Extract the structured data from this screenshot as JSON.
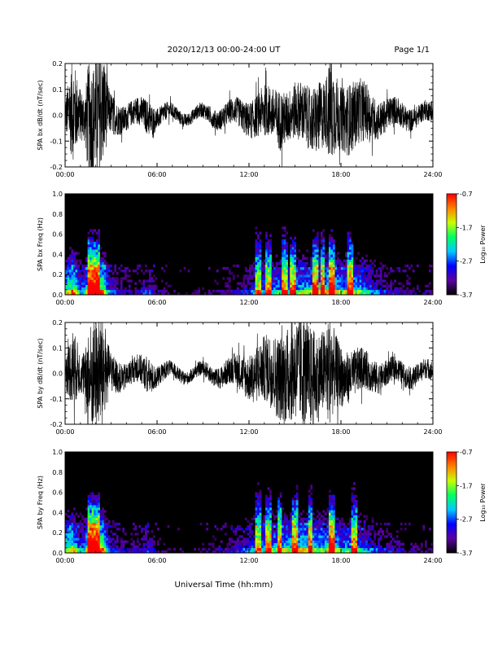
{
  "header": {
    "date_range": "2020/12/13  00:00-24:00 UT",
    "page": "Page 1/1"
  },
  "x_axis": {
    "label": "Universal Time (hh:mm)",
    "range_hours": [
      0,
      24
    ],
    "tick_hours": [
      0,
      6,
      12,
      18,
      24
    ],
    "tick_labels": [
      "00:00",
      "06:00",
      "12:00",
      "18:00",
      "24:00"
    ]
  },
  "colorbar": {
    "label": "Log₁₀ Power",
    "range": [
      -3.7,
      -0.7
    ],
    "tick_values": [
      -0.7,
      -1.7,
      -2.7,
      -3.7
    ],
    "tick_labels": [
      "-0.7",
      "-1.7",
      "-2.7",
      "-3.7"
    ],
    "colors": [
      "#000000",
      "#5a00a0",
      "#0000ff",
      "#00c8ff",
      "#00ff60",
      "#c8ff00",
      "#ff8000",
      "#ff0000"
    ]
  },
  "chart_data": [
    {
      "type": "line",
      "name": "bx-waveform",
      "ylabel": "SPA bx dB/dt (nT/sec)",
      "ylim": [
        -0.2,
        0.2
      ],
      "yticks": [
        0.2,
        0.1,
        0.0,
        -0.1,
        -0.2
      ],
      "ytick_labels": [
        "0.2",
        "0.1",
        "0.0",
        "-0.1",
        "-0.2"
      ],
      "envelope_hours": [
        0,
        0.3,
        0.5,
        1,
        1.3,
        1.5,
        1.8,
        2.2,
        2.5,
        2.8,
        3,
        3.5,
        4,
        4.5,
        5,
        5.5,
        6,
        7,
        8,
        9,
        10,
        11,
        12,
        12.5,
        13,
        13.5,
        14,
        14.5,
        15,
        15.5,
        16,
        16.5,
        17,
        17.3,
        17.6,
        18,
        18.5,
        19,
        19.5,
        20,
        21,
        22,
        23,
        24
      ],
      "envelope_amp": [
        0.06,
        0.15,
        0.2,
        0.1,
        0.1,
        0.22,
        0.22,
        0.22,
        0.22,
        0.1,
        0.08,
        0.06,
        0.05,
        0.05,
        0.06,
        0.07,
        0.04,
        0.03,
        0.025,
        0.03,
        0.04,
        0.05,
        0.07,
        0.08,
        0.1,
        0.1,
        0.12,
        0.1,
        0.11,
        0.12,
        0.12,
        0.14,
        0.13,
        0.22,
        0.16,
        0.12,
        0.14,
        0.13,
        0.12,
        0.09,
        0.06,
        0.05,
        0.04,
        0.04
      ]
    },
    {
      "type": "heatmap",
      "name": "bx-spectrogram",
      "ylabel": "SPA bx Freq (Hz)",
      "ylim": [
        0.0,
        1.0
      ],
      "yticks": [
        1.0,
        0.8,
        0.6,
        0.4,
        0.2,
        0.0
      ],
      "ytick_labels": [
        "1.0",
        "0.8",
        "0.6",
        "0.4",
        "0.2",
        "0.0"
      ],
      "activity_hours": [
        0,
        0.3,
        0.5,
        1,
        1.3,
        1.5,
        1.8,
        2.2,
        2.5,
        2.8,
        3,
        3.5,
        4,
        4.5,
        5,
        5.5,
        6,
        7,
        8,
        9,
        10,
        11,
        12,
        12.5,
        13,
        13.5,
        14,
        14.5,
        15,
        15.5,
        16,
        16.5,
        17,
        17.3,
        17.6,
        18,
        18.5,
        19,
        19.5,
        20,
        21,
        22,
        23,
        24
      ],
      "activity_level": [
        0.8,
        0.9,
        1.0,
        0.6,
        0.6,
        1.0,
        1.0,
        1.0,
        1.0,
        0.6,
        0.5,
        0.4,
        0.35,
        0.35,
        0.4,
        0.45,
        0.3,
        0.25,
        0.2,
        0.25,
        0.3,
        0.35,
        0.45,
        0.55,
        0.6,
        0.65,
        0.7,
        0.65,
        0.7,
        0.75,
        0.75,
        0.8,
        0.8,
        1.0,
        0.85,
        0.7,
        0.8,
        0.75,
        0.7,
        0.55,
        0.4,
        0.35,
        0.3,
        0.3
      ],
      "bright_bursts_hours": [
        1.7,
        2.1,
        12.6,
        13.3,
        14.3,
        14.9,
        16.3,
        16.8,
        17.4,
        18.6
      ]
    },
    {
      "type": "line",
      "name": "by-waveform",
      "ylabel": "SPA by dB/dt (nT/sec)",
      "ylim": [
        -0.2,
        0.2
      ],
      "yticks": [
        0.2,
        0.1,
        0.0,
        -0.1,
        -0.2
      ],
      "ytick_labels": [
        "0.2",
        "0.1",
        "0.0",
        "-0.1",
        "-0.2"
      ],
      "envelope_hours": [
        0,
        0.3,
        0.5,
        1,
        1.3,
        1.5,
        1.8,
        2.2,
        2.5,
        2.8,
        3,
        3.5,
        4,
        4.5,
        5,
        5.5,
        6,
        7,
        8,
        9,
        10,
        11,
        12,
        12.5,
        13,
        13.5,
        14,
        14.5,
        15,
        15.5,
        16,
        16.5,
        17,
        17.3,
        17.6,
        18,
        18.5,
        19,
        19.5,
        20,
        21,
        22,
        23,
        24
      ],
      "envelope_amp": [
        0.06,
        0.12,
        0.16,
        0.08,
        0.09,
        0.22,
        0.22,
        0.22,
        0.22,
        0.1,
        0.08,
        0.06,
        0.05,
        0.05,
        0.06,
        0.07,
        0.04,
        0.03,
        0.025,
        0.03,
        0.04,
        0.06,
        0.09,
        0.11,
        0.13,
        0.15,
        0.17,
        0.19,
        0.2,
        0.22,
        0.2,
        0.18,
        0.16,
        0.22,
        0.15,
        0.12,
        0.1,
        0.09,
        0.08,
        0.07,
        0.05,
        0.045,
        0.04,
        0.04
      ]
    },
    {
      "type": "heatmap",
      "name": "by-spectrogram",
      "ylabel": "SPA by Freq (Hz)",
      "ylim": [
        0.0,
        1.0
      ],
      "yticks": [
        1.0,
        0.8,
        0.6,
        0.4,
        0.2,
        0.0
      ],
      "ytick_labels": [
        "1.0",
        "0.8",
        "0.6",
        "0.4",
        "0.2",
        "0.0"
      ],
      "activity_hours": [
        0,
        0.3,
        0.5,
        1,
        1.3,
        1.5,
        1.8,
        2.2,
        2.5,
        2.8,
        3,
        3.5,
        4,
        4.5,
        5,
        5.5,
        6,
        7,
        8,
        9,
        10,
        11,
        12,
        12.5,
        13,
        13.5,
        14,
        14.5,
        15,
        15.5,
        16,
        16.5,
        17,
        17.3,
        17.6,
        18,
        18.5,
        19,
        19.5,
        20,
        21,
        22,
        23,
        24
      ],
      "activity_level": [
        0.8,
        0.85,
        0.9,
        0.6,
        0.6,
        1.0,
        1.0,
        1.0,
        1.0,
        0.6,
        0.5,
        0.4,
        0.35,
        0.35,
        0.4,
        0.45,
        0.3,
        0.25,
        0.2,
        0.25,
        0.3,
        0.4,
        0.5,
        0.6,
        0.65,
        0.7,
        0.75,
        0.8,
        0.8,
        0.85,
        0.8,
        0.75,
        0.75,
        1.0,
        0.8,
        0.65,
        0.7,
        0.65,
        0.6,
        0.5,
        0.4,
        0.35,
        0.3,
        0.3
      ],
      "bright_bursts_hours": [
        1.7,
        2.1,
        12.6,
        13.3,
        14.0,
        15.0,
        16.0,
        17.4,
        18.9
      ]
    }
  ]
}
